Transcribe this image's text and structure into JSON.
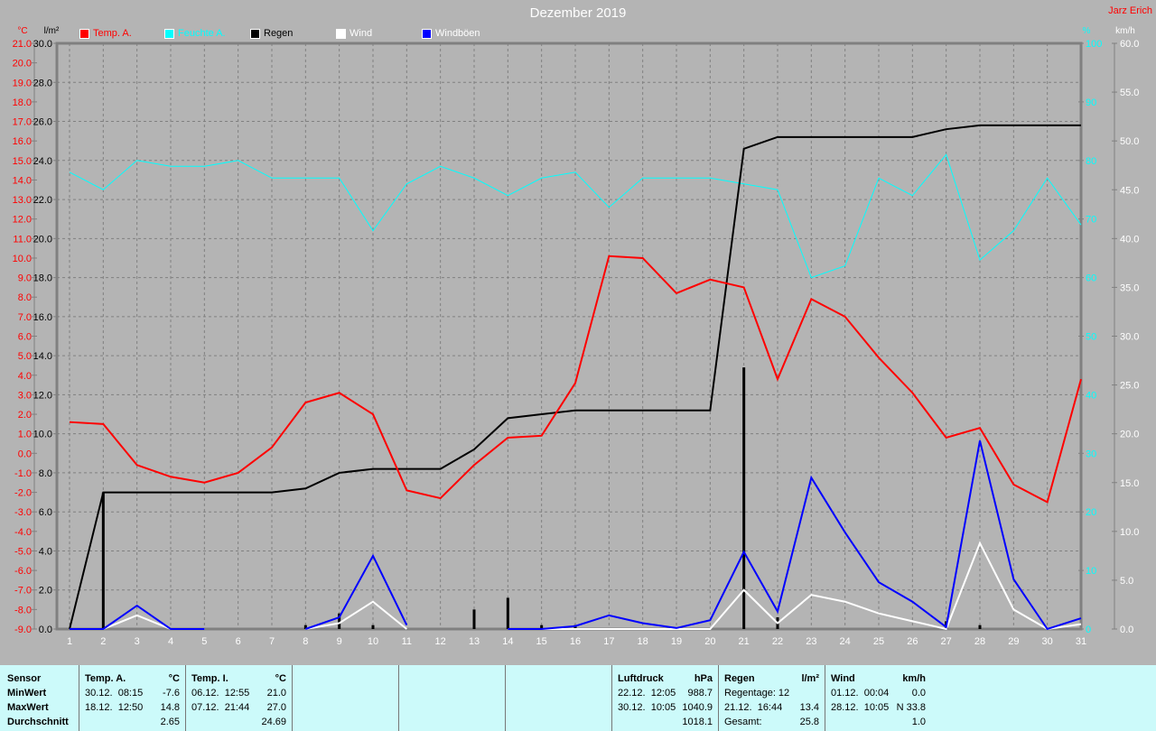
{
  "chart_data": {
    "type": "line",
    "title": "Dezember 2019",
    "author": "Jarz Erich",
    "x": [
      1,
      2,
      3,
      4,
      5,
      6,
      7,
      8,
      9,
      10,
      11,
      12,
      13,
      14,
      15,
      16,
      17,
      18,
      19,
      20,
      21,
      22,
      23,
      24,
      25,
      26,
      27,
      28,
      29,
      30,
      31
    ],
    "axes": {
      "temp": {
        "unit": "°C",
        "range": [
          -9,
          21
        ],
        "ticks": [
          "21.0",
          "20.0",
          "19.0",
          "18.0",
          "17.0",
          "16.0",
          "15.0",
          "14.0",
          "13.0",
          "12.0",
          "11.0",
          "10.0",
          "9.0",
          "8.0",
          "7.0",
          "6.0",
          "5.0",
          "4.0",
          "3.0",
          "2.0",
          "1.0",
          "0.0",
          "-1.0",
          "-2.0",
          "-3.0",
          "-4.0",
          "-5.0",
          "-6.0",
          "-7.0",
          "-8.0",
          "-9.0"
        ],
        "color": "#ff0000"
      },
      "rain": {
        "unit": "l/m²",
        "range": [
          0,
          30
        ],
        "ticks": [
          "30.0",
          "28.0",
          "26.0",
          "24.0",
          "22.0",
          "20.0",
          "18.0",
          "16.0",
          "14.0",
          "12.0",
          "10.0",
          "8.0",
          "6.0",
          "4.0",
          "2.0",
          "0.0"
        ]
      },
      "humidity": {
        "unit": "%",
        "range": [
          0,
          100
        ],
        "ticks": [
          "100",
          "90",
          "80",
          "70",
          "60",
          "50",
          "40",
          "30",
          "20",
          "10",
          "0"
        ],
        "color": "#00ffff"
      },
      "wind": {
        "unit": "km/h",
        "range": [
          0,
          60
        ],
        "ticks": [
          "60.0",
          "55.0",
          "50.0",
          "45.0",
          "40.0",
          "35.0",
          "30.0",
          "25.0",
          "20.0",
          "15.0",
          "10.0",
          "5.0",
          "0.0"
        ]
      }
    },
    "grid": true,
    "legend_position": "top",
    "series": [
      {
        "name": "Temp. A.",
        "axis": "temp",
        "color": "#ff0000",
        "values": [
          1.6,
          1.5,
          -0.6,
          -1.2,
          -1.5,
          -1.0,
          0.3,
          2.6,
          3.1,
          2.0,
          -1.9,
          -2.3,
          -0.6,
          0.8,
          0.9,
          3.6,
          10.1,
          10.0,
          8.2,
          8.9,
          8.5,
          3.8,
          7.9,
          7.0,
          4.9,
          3.1,
          0.8,
          1.3,
          -1.6,
          -2.5,
          3.8
        ]
      },
      {
        "name": "Feuchte A.",
        "axis": "humidity",
        "color": "#00ffff",
        "values": [
          78,
          75,
          80,
          79,
          79,
          80,
          77,
          77,
          77,
          68,
          76,
          79,
          77,
          74,
          77,
          78,
          72,
          77,
          77,
          77,
          76,
          75,
          60,
          62,
          77,
          74,
          81,
          63,
          68,
          77,
          69
        ]
      },
      {
        "name": "Regen",
        "axis": "rain",
        "color": "#000000",
        "values": [
          0,
          7.0,
          7.0,
          7.0,
          7.0,
          7.0,
          7.0,
          7.2,
          8.0,
          8.2,
          8.2,
          8.2,
          9.2,
          10.8,
          11.0,
          11.2,
          11.2,
          11.2,
          11.2,
          11.2,
          24.6,
          25.2,
          25.2,
          25.2,
          25.2,
          25.2,
          25.6,
          25.8,
          25.8,
          25.8,
          25.8
        ],
        "daily": [
          0,
          7.0,
          0,
          0,
          0,
          0,
          0,
          0.2,
          0.8,
          0.2,
          0,
          0,
          1.0,
          1.6,
          0.2,
          0.2,
          0,
          0,
          0,
          0,
          13.4,
          0.6,
          0,
          0,
          0,
          0,
          0.4,
          0.2,
          0,
          0,
          0
        ]
      },
      {
        "name": "Wind",
        "axis": "wind",
        "color": "#ffffff",
        "values": [
          0,
          0,
          1.4,
          0,
          0,
          null,
          null,
          0,
          0.6,
          2.8,
          0,
          null,
          null,
          0,
          0,
          0,
          0,
          0,
          0,
          0,
          4.0,
          0.6,
          3.5,
          2.8,
          1.6,
          0.8,
          0,
          8.8,
          2.0,
          0,
          0.5
        ]
      },
      {
        "name": "Windböen",
        "axis": "wind",
        "color": "#0000ff",
        "values": [
          0,
          0,
          2.4,
          0,
          0,
          null,
          null,
          0,
          1.2,
          7.5,
          0.4,
          null,
          null,
          0,
          0,
          0.3,
          1.4,
          0.6,
          0.1,
          0.9,
          7.9,
          1.8,
          15.5,
          9.9,
          4.8,
          2.8,
          0.2,
          19.3,
          5.1,
          0,
          1.1
        ]
      }
    ]
  },
  "table": {
    "labels": {
      "sensor": "Sensor",
      "min": "MinWert",
      "max": "MaxWert",
      "avg": "Durchschnitt"
    },
    "columns": [
      {
        "name": "Temp. A.",
        "unit": "°C",
        "min": [
          "30.12.  08:15",
          "-7.6"
        ],
        "max": [
          "18.12.  12:50",
          "14.8"
        ],
        "avg": [
          "",
          "2.65"
        ]
      },
      {
        "name": "Temp. I.",
        "unit": "°C",
        "min": [
          "06.12.  12:55",
          "21.0"
        ],
        "max": [
          "07.12.  21:44",
          "27.0"
        ],
        "avg": [
          "",
          "24.69"
        ]
      },
      {
        "name": "Luftdruck",
        "unit": "hPa",
        "min": [
          "22.12.  12:05",
          "988.7"
        ],
        "max": [
          "30.12.  10:05",
          "1040.9"
        ],
        "avg": [
          "",
          "1018.1"
        ]
      },
      {
        "name": "Regen",
        "unit": "l/m²",
        "min": [
          "Regentage: 12",
          ""
        ],
        "max": [
          "21.12.  16:44",
          "13.4"
        ],
        "avg": [
          "Gesamt:",
          "25.8"
        ]
      },
      {
        "name": "Wind",
        "unit": "km/h",
        "min": [
          "01.12.  00:04",
          "0.0"
        ],
        "max": [
          "28.12.  10:05",
          "N 33.8"
        ],
        "avg": [
          "",
          "1.0"
        ]
      }
    ]
  }
}
